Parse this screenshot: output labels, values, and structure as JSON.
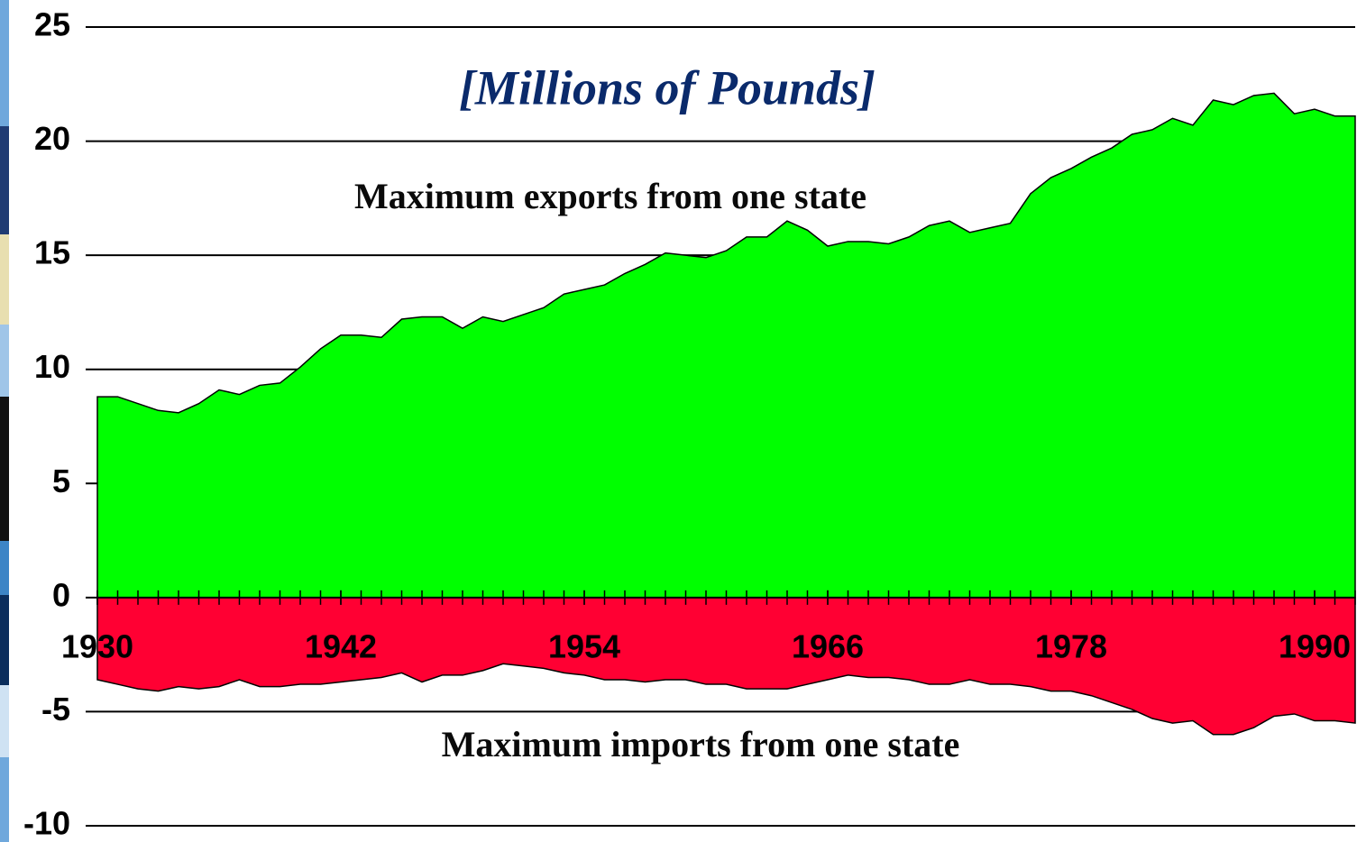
{
  "chart_data": {
    "type": "area",
    "title": "[Millions of Pounds]",
    "annotations": [
      "Maximum exports from one state",
      "Maximum imports from one state"
    ],
    "x": [
      1930,
      1931,
      1932,
      1933,
      1934,
      1935,
      1936,
      1937,
      1938,
      1939,
      1940,
      1941,
      1942,
      1943,
      1944,
      1945,
      1946,
      1947,
      1948,
      1949,
      1950,
      1951,
      1952,
      1953,
      1954,
      1955,
      1956,
      1957,
      1958,
      1959,
      1960,
      1961,
      1962,
      1963,
      1964,
      1965,
      1966,
      1967,
      1968,
      1969,
      1970,
      1971,
      1972,
      1973,
      1974,
      1975,
      1976,
      1977,
      1978,
      1979,
      1980,
      1981,
      1982,
      1983,
      1984,
      1985,
      1986,
      1987,
      1988,
      1989,
      1990,
      1991,
      1992
    ],
    "series": [
      {
        "name": "Maximum exports from one state",
        "color": "#00ff00",
        "values": [
          8.8,
          8.8,
          8.5,
          8.2,
          8.1,
          8.5,
          9.1,
          8.9,
          9.3,
          9.4,
          10.1,
          10.9,
          11.5,
          11.5,
          11.4,
          12.2,
          12.3,
          12.3,
          11.8,
          12.3,
          12.1,
          12.4,
          12.7,
          13.3,
          13.5,
          13.7,
          14.2,
          14.6,
          15.1,
          15.0,
          14.9,
          15.2,
          15.8,
          15.8,
          16.5,
          16.1,
          15.4,
          15.6,
          15.6,
          15.5,
          15.8,
          16.3,
          16.5,
          16.0,
          16.2,
          16.4,
          17.7,
          18.4,
          18.8,
          19.3,
          19.7,
          20.3,
          20.5,
          21.0,
          20.7,
          21.8,
          21.6,
          22.0,
          22.1,
          21.2,
          21.4,
          21.1,
          21.1
        ]
      },
      {
        "name": "Maximum imports from one state",
        "color": "#ff0033",
        "values": [
          -3.6,
          -3.8,
          -4.0,
          -4.1,
          -3.9,
          -4.0,
          -3.9,
          -3.6,
          -3.9,
          -3.9,
          -3.8,
          -3.8,
          -3.7,
          -3.6,
          -3.5,
          -3.3,
          -3.7,
          -3.4,
          -3.4,
          -3.2,
          -2.9,
          -3.0,
          -3.1,
          -3.3,
          -3.4,
          -3.6,
          -3.6,
          -3.7,
          -3.6,
          -3.6,
          -3.8,
          -3.8,
          -4.0,
          -4.0,
          -4.0,
          -3.8,
          -3.6,
          -3.4,
          -3.5,
          -3.5,
          -3.6,
          -3.8,
          -3.8,
          -3.6,
          -3.8,
          -3.8,
          -3.9,
          -4.1,
          -4.1,
          -4.3,
          -4.6,
          -4.9,
          -5.3,
          -5.5,
          -5.4,
          -6.0,
          -6.0,
          -5.7,
          -5.2,
          -5.1,
          -5.4,
          -5.4,
          -5.5
        ]
      }
    ],
    "xlim": [
      1930,
      1992
    ],
    "xticks": [
      1930,
      1942,
      1954,
      1966,
      1978,
      1990
    ],
    "ylim": [
      -10,
      25
    ],
    "yticks": [
      -10,
      -5,
      0,
      5,
      10,
      15,
      20,
      25
    ],
    "grid": true
  }
}
